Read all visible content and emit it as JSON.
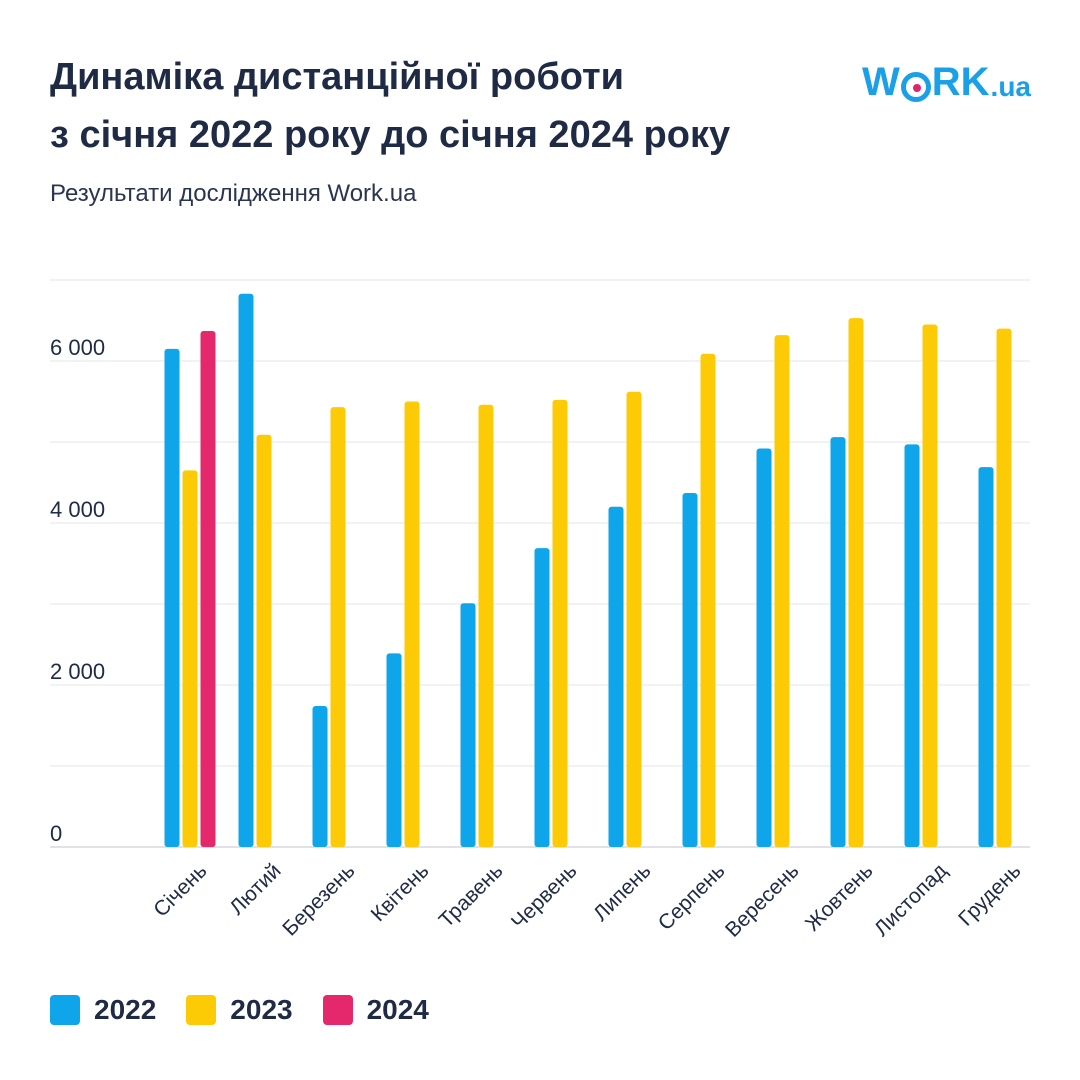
{
  "header": {
    "title_line1": "Динаміка дистанційної роботи",
    "title_line2": "з січня 2022 року до січня 2024 року",
    "subtitle": "Результати дослідження Work.ua"
  },
  "logo": {
    "text_w": "W",
    "text_rk": "RK",
    "text_suffix": ".ua",
    "brand_color": "#1aa0e8",
    "dot_color": "#e0246a"
  },
  "chart_data": {
    "type": "bar",
    "categories": [
      "Січень",
      "Лютий",
      "Березень",
      "Квітень",
      "Травень",
      "Червень",
      "Липень",
      "Серпень",
      "Вересень",
      "Жовтень",
      "Листопад",
      "Грудень"
    ],
    "series": [
      {
        "name": "2022",
        "color": "#0ea5ea",
        "values": [
          6150,
          6830,
          1740,
          2390,
          3010,
          3690,
          4200,
          4370,
          4920,
          5060,
          4970,
          4690
        ]
      },
      {
        "name": "2023",
        "color": "#fdcb06",
        "values": [
          4650,
          5090,
          5430,
          5500,
          5460,
          5520,
          5620,
          6090,
          6320,
          6530,
          6450,
          6400
        ]
      },
      {
        "name": "2024",
        "color": "#e5286b",
        "values": [
          6370,
          null,
          null,
          null,
          null,
          null,
          null,
          null,
          null,
          null,
          null,
          null
        ]
      }
    ],
    "ylim": [
      0,
      7000
    ],
    "y_ticks": [
      0,
      2000,
      4000,
      6000
    ],
    "y_tick_labels": [
      "0",
      "2 000",
      "4 000",
      "6 000"
    ],
    "grid": true,
    "legend_position": "bottom-left",
    "xlabel": "",
    "ylabel": ""
  }
}
